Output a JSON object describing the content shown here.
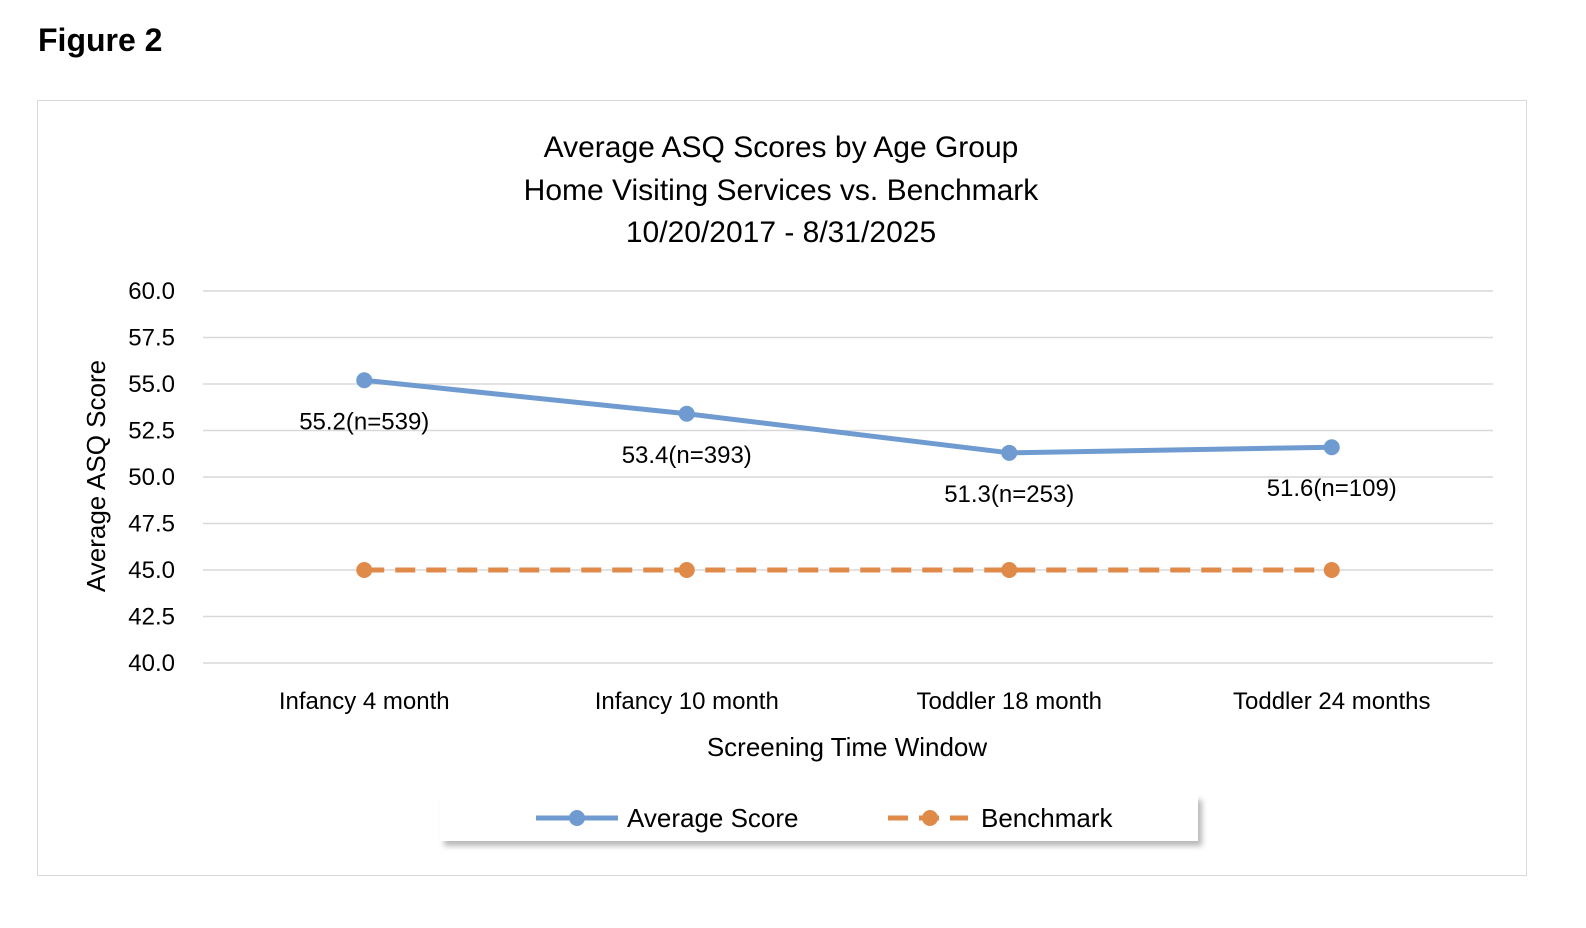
{
  "figure_label": "Figure 2",
  "chart_data": {
    "type": "line",
    "title": [
      "Average ASQ Scores by Age Group",
      "Home Visiting Services vs. Benchmark",
      "10/20/2017 - 8/31/2025"
    ],
    "xlabel": "Screening Time Window",
    "ylabel": "Average ASQ Score",
    "categories": [
      "Infancy 4 month",
      "Infancy 10 month",
      "Toddler 18 month",
      "Toddler 24 months"
    ],
    "ylim": [
      40.0,
      60.0
    ],
    "yticks": [
      "60.0",
      "57.5",
      "55.0",
      "52.5",
      "50.0",
      "47.5",
      "45.0",
      "42.5",
      "40.0"
    ],
    "ytick_values": [
      60.0,
      57.5,
      55.0,
      52.5,
      50.0,
      47.5,
      45.0,
      42.5,
      40.0
    ],
    "grid": true,
    "legend_position": "bottom",
    "series": [
      {
        "name": "Average Score",
        "values": [
          55.2,
          53.4,
          51.3,
          51.6
        ],
        "data_labels": [
          "55.2(n=539)",
          "53.4(n=393)",
          "51.3(n=253)",
          "51.6(n=109)"
        ],
        "color": "#6f9bd1",
        "style": "solid"
      },
      {
        "name": "Benchmark",
        "values": [
          45.0,
          45.0,
          45.0,
          45.0
        ],
        "color": "#e08a4a",
        "style": "dashed"
      }
    ]
  }
}
